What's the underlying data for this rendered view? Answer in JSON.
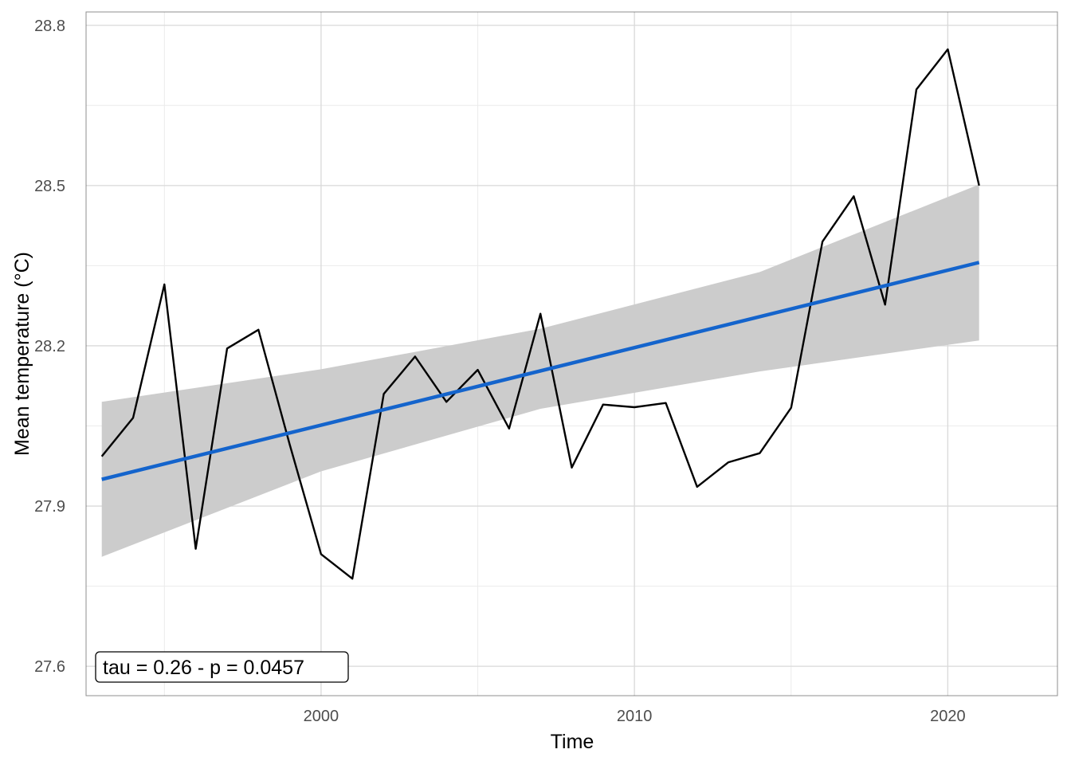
{
  "chart_data": {
    "type": "line",
    "title": "",
    "xlabel": "Time",
    "ylabel": "Mean temperature (°C)",
    "xlim": [
      1992.5,
      2023.5
    ],
    "ylim": [
      27.545,
      28.825
    ],
    "x_ticks": [
      2000,
      2010,
      2020
    ],
    "x_tick_labels": [
      "2000",
      "2010",
      "2020"
    ],
    "x_minor_ticks": [
      1995,
      2005,
      2015
    ],
    "y_ticks": [
      27.6,
      27.9,
      28.2,
      28.5,
      28.8
    ],
    "y_tick_labels": [
      "27.6",
      "27.9",
      "28.2",
      "28.5",
      "28.8"
    ],
    "y_minor_ticks": [
      27.75,
      28.05,
      28.35,
      28.65
    ],
    "grid": true,
    "series": [
      {
        "name": "Mean temperature",
        "kind": "line",
        "color": "#000000",
        "x": [
          1993,
          1994,
          1995,
          1996,
          1997,
          1998,
          1999,
          2000,
          2001,
          2002,
          2003,
          2004,
          2005,
          2006,
          2007,
          2008,
          2009,
          2010,
          2011,
          2012,
          2013,
          2014,
          2015,
          2016,
          2017,
          2018,
          2019,
          2020,
          2021
        ],
        "values": [
          27.993,
          28.065,
          28.315,
          27.82,
          28.195,
          28.23,
          28.015,
          27.81,
          27.764,
          28.11,
          28.18,
          28.095,
          28.155,
          28.045,
          28.26,
          27.972,
          28.09,
          28.085,
          28.093,
          27.936,
          27.982,
          27.999,
          28.084,
          28.395,
          28.48,
          28.277,
          28.68,
          28.755,
          28.5
        ]
      },
      {
        "name": "Linear trend",
        "kind": "trend",
        "color": "#1464cc",
        "x": [
          1993,
          2021
        ],
        "values": [
          27.95,
          28.356
        ]
      }
    ],
    "confidence_band": {
      "color": "#cccccc",
      "x": [
        1993,
        2000,
        2007,
        2014,
        2021
      ],
      "lower": [
        27.805,
        27.965,
        28.082,
        28.152,
        28.21
      ],
      "upper": [
        28.095,
        28.156,
        28.232,
        28.338,
        28.502
      ]
    },
    "annotation": {
      "text": "tau = 0.26 - p = 0.0457",
      "position": "bottom-left"
    }
  }
}
